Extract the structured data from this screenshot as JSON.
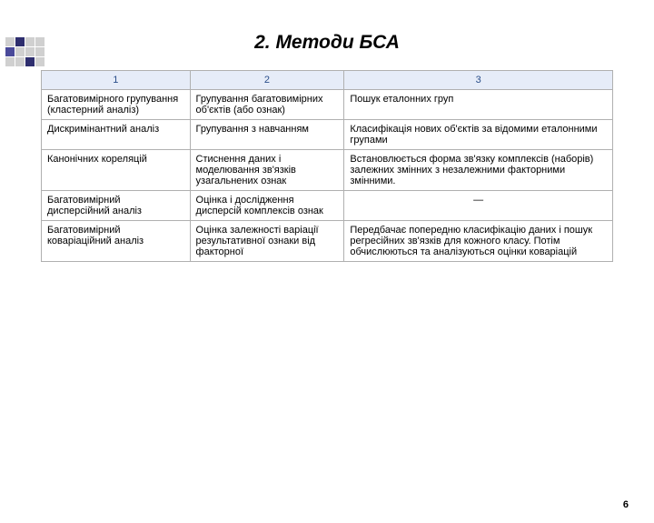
{
  "title": "2. Методи БСА",
  "table": {
    "columns": [
      "1",
      "2",
      "3"
    ],
    "col_widths": [
      "26%",
      "27%",
      "47%"
    ],
    "header_bg": "#e6ecf8",
    "header_color": "#2a4e8a",
    "border_color": "#b0b0b0",
    "font_size": 11,
    "rows": [
      [
        "Багатовимірного групування (кластерний аналіз)",
        "Групування багатовимірних об'єктів (або ознак)",
        "Пошук еталонних груп"
      ],
      [
        "Дискримінантний аналіз",
        "Групування з навчанням",
        "Класифікація нових об'єктів за відомими еталонними групами"
      ],
      [
        "Канонічних кореляцій",
        "Стиснення даних і моделювання зв'язків узагальнених ознак",
        "Встановлюється форма зв'язку комплексів (наборів) залежних змінних з незалежними факторними змінними."
      ],
      [
        "Багатовимірний дисперсійний аналіз",
        "Оцінка і дослідження дисперсій комплексів ознак",
        "—"
      ],
      [
        "Багатовимірний коваріаційний аналіз",
        "Оцінка залежності варіації результативної ознаки  від факторної",
        "Передбачає попередню класифікацію даних і пошук регресійних зв'язків для кожного класу. Потім обчислюються та аналізуються оцінки коваріацій"
      ]
    ]
  },
  "page_number": "6",
  "decoration": {
    "pattern": [
      [
        "g",
        "c1",
        "g",
        "g"
      ],
      [
        "c2",
        "g",
        "g",
        "g"
      ],
      [
        "g",
        "g",
        "c1",
        "g"
      ]
    ],
    "colors": {
      "g": "#d0d0d0",
      "c1": "#2e2e6e",
      "c2": "#4a4a9a"
    }
  }
}
